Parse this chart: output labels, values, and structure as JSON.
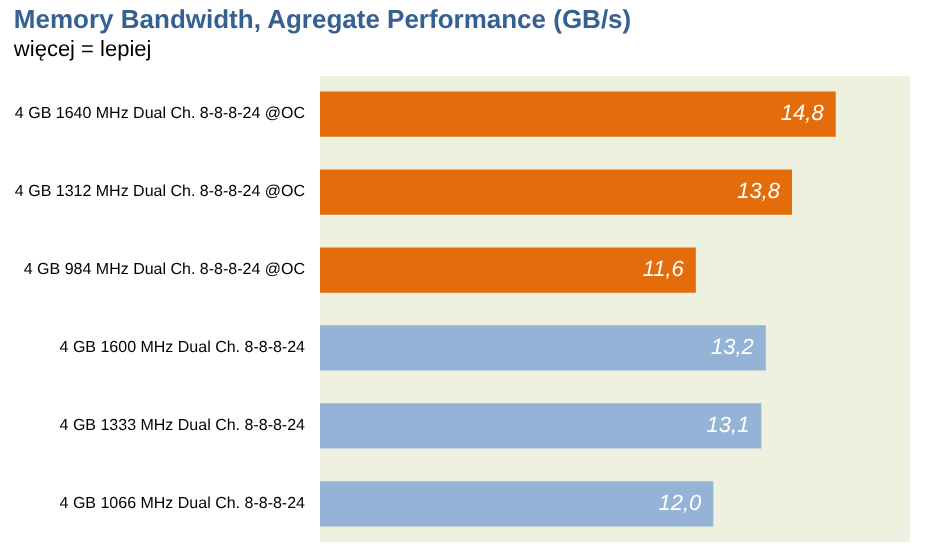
{
  "chart_data": {
    "type": "bar",
    "orientation": "horizontal",
    "title": "Memory Bandwidth, Agregate Performance (GB/s)",
    "subtitle": "więcej = lepiej",
    "categories": [
      "4 GB 1640 MHz Dual Ch. 8-8-8-24 @OC",
      "4 GB 1312 MHz Dual Ch. 8-8-8-24 @OC",
      "4 GB 984 MHz Dual Ch. 8-8-8-24 @OC",
      null,
      "4 GB 1600 MHz Dual Ch. 8-8-8-24",
      "4 GB 1333 MHz Dual Ch. 8-8-8-24",
      "4 GB 1066 MHz Dual Ch. 8-8-8-24"
    ],
    "values": [
      14.8,
      13.8,
      11.6,
      null,
      13.2,
      13.1,
      12.0
    ],
    "value_labels": [
      "14,8",
      "13,8",
      "11,6",
      null,
      "13,2",
      "13,1",
      "12,0"
    ],
    "colors": [
      "#e46c0a",
      "#e46c0a",
      "#e46c0a",
      null,
      "#95b3d7",
      "#95b3d7",
      "#95b3d7"
    ],
    "xlim": [
      3,
      16.5
    ]
  }
}
